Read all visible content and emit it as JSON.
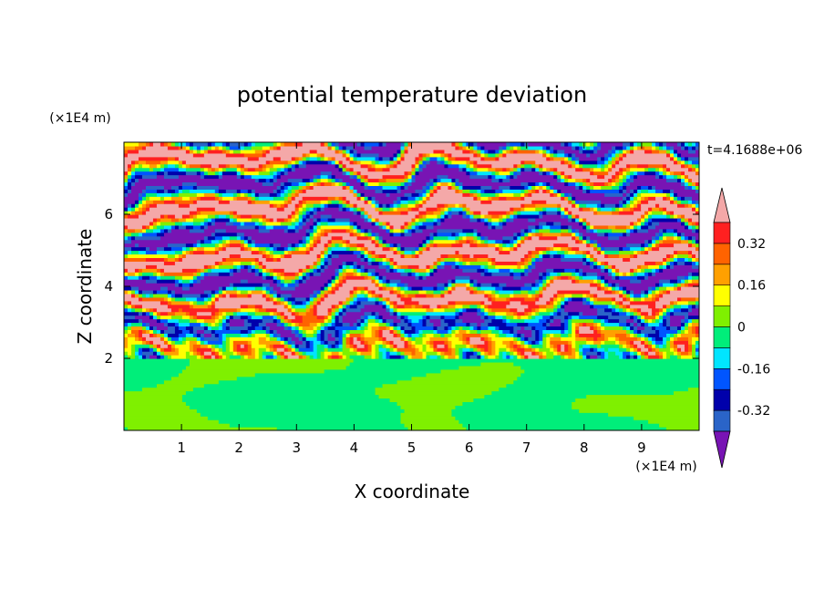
{
  "chart_data": {
    "type": "heatmap",
    "title": "potential temperature deviation",
    "xlabel": "X coordinate",
    "ylabel": "Z coordinate",
    "x_unit": "(×1E4 m)",
    "y_unit": "(×1E4 m)",
    "time_label": "t=4.1688e+06",
    "xlim": [
      0,
      10
    ],
    "ylim": [
      0,
      8
    ],
    "x_ticks": [
      1,
      2,
      3,
      4,
      5,
      6,
      7,
      8,
      9
    ],
    "y_ticks": [
      2,
      4,
      6
    ],
    "inversion_height": 2,
    "colorbar": {
      "levels": [
        -0.4,
        -0.32,
        -0.24,
        -0.16,
        -0.08,
        0,
        0.08,
        0.16,
        0.24,
        0.32,
        0.4
      ],
      "colors": [
        "#2a64c8",
        "#0000ab",
        "#0055ff",
        "#00e5ff",
        "#00ee7a",
        "#7ff000",
        "#ffff00",
        "#ffa000",
        "#ff6300",
        "#ff2020"
      ],
      "under_color": "#7814b4",
      "over_color": "#f4a8a8",
      "tick_labels": [
        "0.32",
        "0.16",
        "0",
        "-0.16",
        "-0.32"
      ],
      "tick_values": [
        0.32,
        0.16,
        0,
        -0.16,
        -0.32
      ],
      "extend": "both"
    }
  }
}
